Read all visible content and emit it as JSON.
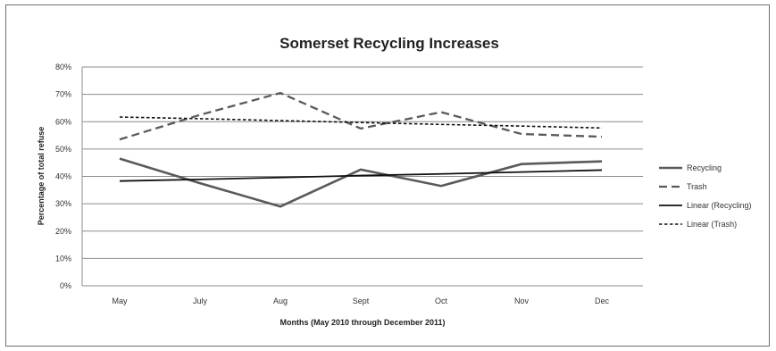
{
  "chart_data": {
    "type": "line",
    "title": "Somerset Recycling Increases",
    "xlabel": "Months (May 2010 through December 2011)",
    "ylabel": "Percentage of total refuse",
    "categories": [
      "May",
      "July",
      "Aug",
      "Sept",
      "Oct",
      "Nov",
      "Dec"
    ],
    "ylim": [
      0,
      80
    ],
    "yticks": [
      "0%",
      "10%",
      "20%",
      "30%",
      "40%",
      "50%",
      "60%",
      "70%",
      "80%"
    ],
    "grid": true,
    "legend_position": "right",
    "series": [
      {
        "name": "Recycling",
        "values": [
          46.5,
          37.5,
          29,
          42.5,
          36.5,
          44.5,
          45.5
        ],
        "color": "#5a5a5a",
        "dash": "solid"
      },
      {
        "name": "Trash",
        "values": [
          53.5,
          62.5,
          70.5,
          57.5,
          63.5,
          55.5,
          54.5
        ],
        "color": "#5a5a5a",
        "dash": "long-dash"
      },
      {
        "name": "Linear (Recycling)",
        "values": [
          38.3,
          38.9,
          39.6,
          40.3,
          40.9,
          41.6,
          42.3
        ],
        "color": "#111111",
        "dash": "solid"
      },
      {
        "name": "Linear (Trash)",
        "values": [
          61.7,
          61.1,
          60.4,
          59.7,
          59.0,
          58.4,
          57.7
        ],
        "color": "#111111",
        "dash": "short-dash"
      }
    ]
  }
}
